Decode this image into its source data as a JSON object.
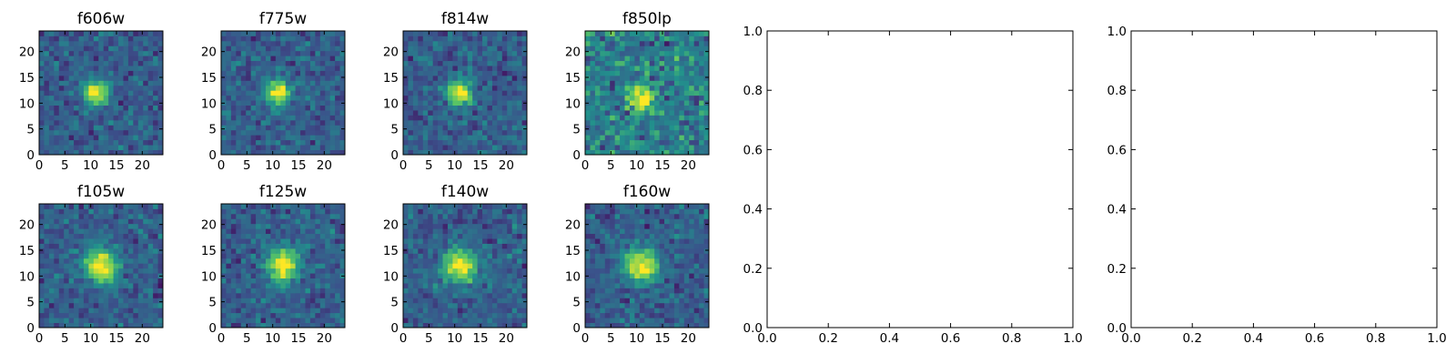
{
  "figure": {
    "background": "#ffffff",
    "colormap": [
      "#440154",
      "#3b528b",
      "#21918c",
      "#5ec962",
      "#fde725"
    ]
  },
  "chart_data": [
    {
      "type": "heatmap",
      "title": "f606w",
      "xlim": [
        0,
        24
      ],
      "ylim": [
        0,
        24
      ],
      "xticks": [
        "0",
        "5",
        "10",
        "15",
        "20"
      ],
      "yticks": [
        "0",
        "5",
        "10",
        "15",
        "20"
      ],
      "source_peak": {
        "x": 11,
        "y": 12
      },
      "grid": false
    },
    {
      "type": "heatmap",
      "title": "f775w",
      "xlim": [
        0,
        24
      ],
      "ylim": [
        0,
        24
      ],
      "xticks": [
        "0",
        "5",
        "10",
        "15",
        "20"
      ],
      "yticks": [
        "0",
        "5",
        "10",
        "15",
        "20"
      ],
      "source_peak": {
        "x": 11,
        "y": 12
      },
      "grid": false
    },
    {
      "type": "heatmap",
      "title": "f814w",
      "xlim": [
        0,
        24
      ],
      "ylim": [
        0,
        24
      ],
      "xticks": [
        "0",
        "5",
        "10",
        "15",
        "20"
      ],
      "yticks": [
        "0",
        "5",
        "10",
        "15",
        "20"
      ],
      "source_peak": {
        "x": 11,
        "y": 12
      },
      "grid": false
    },
    {
      "type": "heatmap",
      "title": "f850lp",
      "xlim": [
        0,
        24
      ],
      "ylim": [
        0,
        24
      ],
      "xticks": [
        "0",
        "5",
        "10",
        "15",
        "20"
      ],
      "yticks": [
        "0",
        "5",
        "10",
        "15",
        "20"
      ],
      "source_peak": {
        "x": 11,
        "y": 11
      },
      "grid": false
    },
    {
      "type": "heatmap",
      "title": "f105w",
      "xlim": [
        0,
        24
      ],
      "ylim": [
        0,
        24
      ],
      "xticks": [
        "0",
        "5",
        "10",
        "15",
        "20"
      ],
      "yticks": [
        "0",
        "5",
        "10",
        "15",
        "20"
      ],
      "source_peak": {
        "x": 12,
        "y": 12
      },
      "grid": false
    },
    {
      "type": "heatmap",
      "title": "f125w",
      "xlim": [
        0,
        24
      ],
      "ylim": [
        0,
        24
      ],
      "xticks": [
        "0",
        "5",
        "10",
        "15",
        "20"
      ],
      "yticks": [
        "0",
        "5",
        "10",
        "15",
        "20"
      ],
      "source_peak": {
        "x": 12,
        "y": 12
      },
      "grid": false
    },
    {
      "type": "heatmap",
      "title": "f140w",
      "xlim": [
        0,
        24
      ],
      "ylim": [
        0,
        24
      ],
      "xticks": [
        "0",
        "5",
        "10",
        "15",
        "20"
      ],
      "yticks": [
        "0",
        "5",
        "10",
        "15",
        "20"
      ],
      "source_peak": {
        "x": 11,
        "y": 12
      },
      "grid": false
    },
    {
      "type": "heatmap",
      "title": "f160w",
      "xlim": [
        0,
        24
      ],
      "ylim": [
        0,
        24
      ],
      "xticks": [
        "0",
        "5",
        "10",
        "15",
        "20"
      ],
      "yticks": [
        "0",
        "5",
        "10",
        "15",
        "20"
      ],
      "source_peak": {
        "x": 11,
        "y": 12
      },
      "grid": false
    },
    {
      "type": "scatter",
      "title": "",
      "xlim": [
        0,
        1
      ],
      "ylim": [
        0,
        1
      ],
      "xticks": [
        "0.0",
        "0.2",
        "0.4",
        "0.6",
        "0.8",
        "1.0"
      ],
      "yticks": [
        "0.0",
        "0.2",
        "0.4",
        "0.6",
        "0.8",
        "1.0"
      ],
      "series": [],
      "grid": false
    },
    {
      "type": "scatter",
      "title": "",
      "xlim": [
        0,
        1
      ],
      "ylim": [
        0,
        1
      ],
      "xticks": [
        "0.0",
        "0.2",
        "0.4",
        "0.6",
        "0.8",
        "1.0"
      ],
      "yticks": [
        "0.0",
        "0.2",
        "0.4",
        "0.6",
        "0.8",
        "1.0"
      ],
      "series": [],
      "grid": false
    }
  ]
}
